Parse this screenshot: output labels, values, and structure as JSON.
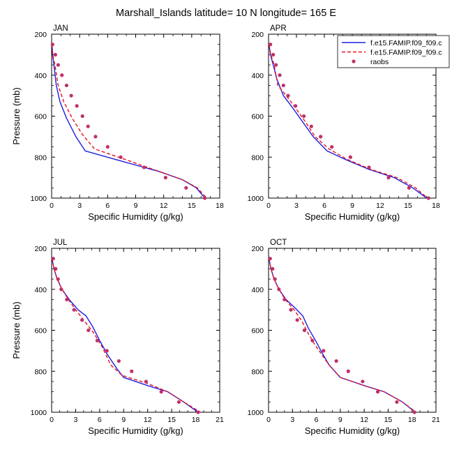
{
  "figure": {
    "title": "Marshall_Islands  latitude= 10 N longitude= 165 E"
  },
  "legend": {
    "entries": [
      {
        "label": "f.e15.FAMIP.f09_f09.c",
        "style": "solid",
        "color": "#0000ff"
      },
      {
        "label": "f.e15.FAMIP.f09_f09.c",
        "style": "dashed",
        "color": "#ff0000"
      },
      {
        "label": "raobs",
        "style": "marker",
        "color": "#c0306a"
      }
    ]
  },
  "colors": {
    "model_1": "#1f1fe0",
    "model_2": "#e8111c",
    "raobs": "#c0306a"
  },
  "chart_data": [
    {
      "type": "line",
      "panel": "JAN",
      "xlabel": "Specific Humidity (g/kg)",
      "ylabel": "Pressure (mb)",
      "xlim": [
        0,
        18
      ],
      "ylim": [
        1000,
        200
      ],
      "xticks": [
        0,
        3,
        6,
        9,
        12,
        15,
        18
      ],
      "yticks": [
        200,
        400,
        600,
        800,
        1000
      ],
      "series": [
        {
          "name": "f.e15.FAMIP.f09_f09.c",
          "style": "solid",
          "x": [
            0.05,
            0.1,
            0.25,
            0.5,
            0.9,
            1.6,
            2.6,
            3.6,
            7.5,
            11.5,
            14.0,
            15.5,
            16.4
          ],
          "y": [
            250,
            300,
            350,
            450,
            530,
            610,
            700,
            770,
            820,
            870,
            910,
            950,
            1000
          ]
        },
        {
          "name": "f.e15.FAMIP.f09_f09.c",
          "style": "dashed",
          "x": [
            0.05,
            0.12,
            0.35,
            0.7,
            1.3,
            2.2,
            3.3,
            4.6,
            7.8,
            11.5,
            14.0,
            15.6,
            16.6
          ],
          "y": [
            250,
            300,
            350,
            450,
            530,
            610,
            690,
            760,
            810,
            870,
            910,
            950,
            1000
          ]
        },
        {
          "name": "raobs",
          "style": "marker",
          "x": [
            0.1,
            0.4,
            0.7,
            1.1,
            1.6,
            2.1,
            2.7,
            3.3,
            3.9,
            4.7,
            6.0,
            7.4,
            9.9,
            12.2,
            14.4,
            16.4
          ],
          "y": [
            250,
            300,
            350,
            400,
            450,
            500,
            550,
            600,
            650,
            700,
            750,
            800,
            850,
            900,
            950,
            1000
          ]
        }
      ]
    },
    {
      "type": "line",
      "panel": "APR",
      "xlabel": "Specific Humidity (g/kg)",
      "ylabel": "",
      "xlim": [
        0,
        18
      ],
      "ylim": [
        1000,
        200
      ],
      "xticks": [
        0,
        3,
        6,
        9,
        12,
        15,
        18
      ],
      "yticks": [
        200,
        400,
        600,
        800,
        1000
      ],
      "series": [
        {
          "name": "f.e15.FAMIP.f09_f09.c",
          "style": "solid",
          "x": [
            0.05,
            0.2,
            0.5,
            0.9,
            1.6,
            2.6,
            3.7,
            4.8,
            6.3,
            8.2,
            10.8,
            13.5,
            15.5,
            17.0
          ],
          "y": [
            250,
            300,
            350,
            420,
            500,
            560,
            630,
            700,
            770,
            810,
            860,
            900,
            950,
            1000
          ]
        },
        {
          "name": "f.e15.FAMIP.f09_f09.c",
          "style": "dashed",
          "x": [
            0.05,
            0.25,
            0.6,
            1.0,
            1.9,
            2.9,
            4.0,
            5.0,
            6.5,
            8.4,
            11.0,
            13.8,
            15.8,
            17.1
          ],
          "y": [
            250,
            300,
            350,
            450,
            500,
            560,
            630,
            700,
            760,
            810,
            860,
            900,
            950,
            1000
          ]
        },
        {
          "name": "raobs",
          "style": "marker",
          "x": [
            0.2,
            0.5,
            0.8,
            1.2,
            1.6,
            2.1,
            2.9,
            3.8,
            4.6,
            5.6,
            6.8,
            8.8,
            10.8,
            12.9,
            15.1,
            17.2
          ],
          "y": [
            250,
            300,
            350,
            400,
            450,
            500,
            550,
            600,
            650,
            700,
            750,
            800,
            850,
            900,
            950,
            1000
          ]
        }
      ]
    },
    {
      "type": "line",
      "panel": "JUL",
      "xlabel": "Specific Humidity (g/kg)",
      "ylabel": "Pressure (mb)",
      "xlim": [
        0,
        21
      ],
      "ylim": [
        1000,
        200
      ],
      "xticks": [
        0,
        3,
        6,
        9,
        12,
        15,
        18,
        21
      ],
      "yticks": [
        200,
        400,
        600,
        800,
        1000
      ],
      "series": [
        {
          "name": "f.e15.FAMIP.f09_f09.c",
          "style": "solid",
          "x": [
            0.05,
            0.3,
            0.7,
            1.3,
            2.2,
            3.3,
            4.3,
            5.1,
            6.0,
            7.0,
            8.2,
            9.0,
            12.0,
            14.5,
            16.5,
            18.3
          ],
          "y": [
            250,
            300,
            350,
            400,
            450,
            500,
            530,
            580,
            650,
            720,
            790,
            830,
            870,
            900,
            950,
            1000
          ]
        },
        {
          "name": "f.e15.FAMIP.f09_f09.c",
          "style": "dashed",
          "x": [
            0.05,
            0.3,
            0.7,
            1.3,
            2.1,
            3.0,
            4.0,
            5.2,
            6.3,
            7.4,
            8.8,
            12.0,
            14.5,
            16.5,
            18.6
          ],
          "y": [
            250,
            300,
            350,
            400,
            450,
            500,
            550,
            610,
            680,
            770,
            820,
            860,
            900,
            950,
            1000
          ]
        },
        {
          "name": "raobs",
          "style": "marker",
          "x": [
            0.2,
            0.5,
            0.8,
            1.2,
            1.9,
            2.8,
            3.8,
            4.6,
            5.7,
            6.9,
            8.4,
            10.0,
            11.8,
            13.7,
            15.9,
            18.3
          ],
          "y": [
            250,
            300,
            350,
            400,
            450,
            500,
            550,
            600,
            650,
            700,
            750,
            800,
            850,
            900,
            950,
            1000
          ]
        }
      ]
    },
    {
      "type": "line",
      "panel": "OCT",
      "xlabel": "Specific Humidity (g/kg)",
      "ylabel": "",
      "xlim": [
        0,
        21
      ],
      "ylim": [
        1000,
        200
      ],
      "xticks": [
        0,
        3,
        6,
        9,
        12,
        15,
        18,
        21
      ],
      "yticks": [
        200,
        400,
        600,
        800,
        1000
      ],
      "series": [
        {
          "name": "f.e15.FAMIP.f09_f09.c",
          "style": "solid",
          "x": [
            0.05,
            0.3,
            0.7,
            1.3,
            2.2,
            3.3,
            4.3,
            5.0,
            5.9,
            6.7,
            7.6,
            9.0,
            12.0,
            14.5,
            16.8,
            18.4
          ],
          "y": [
            250,
            300,
            350,
            400,
            450,
            490,
            530,
            590,
            650,
            710,
            770,
            830,
            870,
            900,
            950,
            1000
          ]
        },
        {
          "name": "f.e15.FAMIP.f09_f09.c",
          "style": "dashed",
          "x": [
            0.05,
            0.3,
            0.7,
            1.3,
            2.1,
            3.2,
            4.1,
            4.9,
            5.8,
            6.7,
            7.6,
            9.0,
            12.0,
            14.5,
            16.8,
            18.5
          ],
          "y": [
            250,
            300,
            350,
            400,
            450,
            500,
            550,
            610,
            670,
            720,
            770,
            830,
            870,
            900,
            950,
            1000
          ]
        },
        {
          "name": "raobs",
          "style": "marker",
          "x": [
            0.2,
            0.5,
            0.8,
            1.3,
            2.0,
            2.8,
            3.6,
            4.5,
            5.5,
            6.9,
            8.5,
            10.0,
            11.8,
            13.7,
            16.1,
            18.3
          ],
          "y": [
            250,
            300,
            350,
            400,
            450,
            500,
            550,
            600,
            650,
            700,
            750,
            800,
            850,
            900,
            950,
            1000
          ]
        }
      ]
    }
  ]
}
